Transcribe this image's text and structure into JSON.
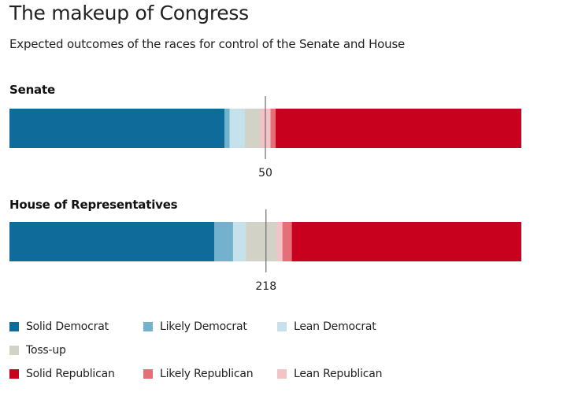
{
  "chart_data": {
    "title": "The makeup of Congress",
    "subtitle": "Expected outcomes of the races for control of the Senate and House",
    "type": "stacked-bar",
    "categories": [
      "Solid Democrat",
      "Likely Democrat",
      "Lean Democrat",
      "Toss-up",
      "Solid Republican",
      "Likely Republican",
      "Lean Republican"
    ],
    "colors": {
      "Solid Democrat": "#0f6b99",
      "Likely Democrat": "#73b1cc",
      "Lean Democrat": "#c4e1ec",
      "Toss-up": "#d3d2c7",
      "Solid Republican": "#c8021e",
      "Likely Republican": "#e56f77",
      "Lean Republican": "#f2c3c7"
    },
    "bars": [
      {
        "label": "Senate",
        "total": 100,
        "threshold": 50,
        "threshold_label": "50",
        "order": [
          "Solid Democrat",
          "Likely Democrat",
          "Lean Democrat",
          "Toss-up",
          "Lean Republican",
          "Likely Republican",
          "Solid Republican"
        ],
        "values": {
          "Solid Democrat": 42,
          "Likely Democrat": 1,
          "Lean Democrat": 3,
          "Toss-up": 3,
          "Lean Republican": 2,
          "Likely Republican": 1,
          "Solid Republican": 48
        }
      },
      {
        "label": "House of Representatives",
        "total": 435,
        "threshold": 218,
        "threshold_label": "218",
        "order": [
          "Solid Democrat",
          "Likely Democrat",
          "Lean Democrat",
          "Toss-up",
          "Lean Republican",
          "Likely Republican",
          "Solid Republican"
        ],
        "values": {
          "Solid Democrat": 174,
          "Likely Democrat": 16,
          "Lean Democrat": 11,
          "Toss-up": 26,
          "Lean Republican": 5,
          "Likely Republican": 8,
          "Solid Republican": 195
        }
      }
    ],
    "legend": [
      [
        "Solid Democrat",
        "Likely Democrat",
        "Lean Democrat"
      ],
      [
        "Toss-up"
      ],
      [
        "Solid Republican",
        "Likely Republican",
        "Lean Republican"
      ]
    ]
  }
}
